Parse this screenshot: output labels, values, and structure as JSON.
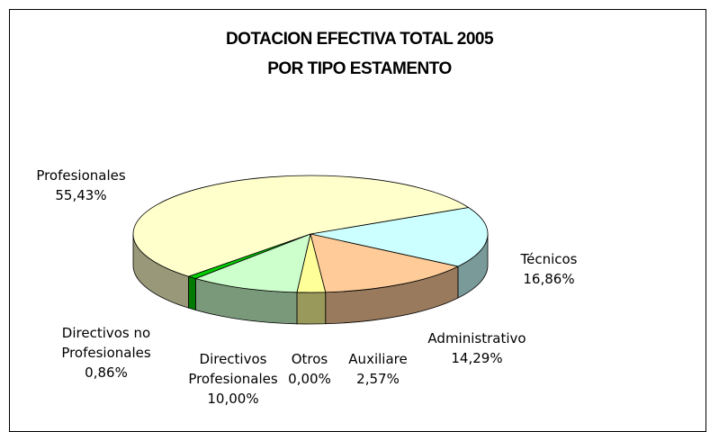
{
  "chart_data": {
    "type": "pie3d",
    "title": "DOTACION EFECTIVA TOTAL 2005",
    "subtitle": "POR TIPO ESTAMENTO",
    "categories": [
      "Técnicos",
      "Administrativo",
      "Auxiliare",
      "Otros",
      "Directivos Profesionales",
      "Directivos no Profesionales",
      "Profesionales"
    ],
    "values": [
      16.86,
      14.29,
      2.57,
      0.0,
      10.0,
      0.86,
      55.43
    ],
    "value_labels": [
      "16,86%",
      "14,29%",
      "2,57%",
      "0,00%",
      "10,00%",
      "0,86%",
      "55,43%"
    ],
    "colors": [
      "#ccffff",
      "#ffcc99",
      "#ffff99",
      "#9999ff",
      "#ccffcc",
      "#00cc00",
      "#ffffcc"
    ]
  }
}
